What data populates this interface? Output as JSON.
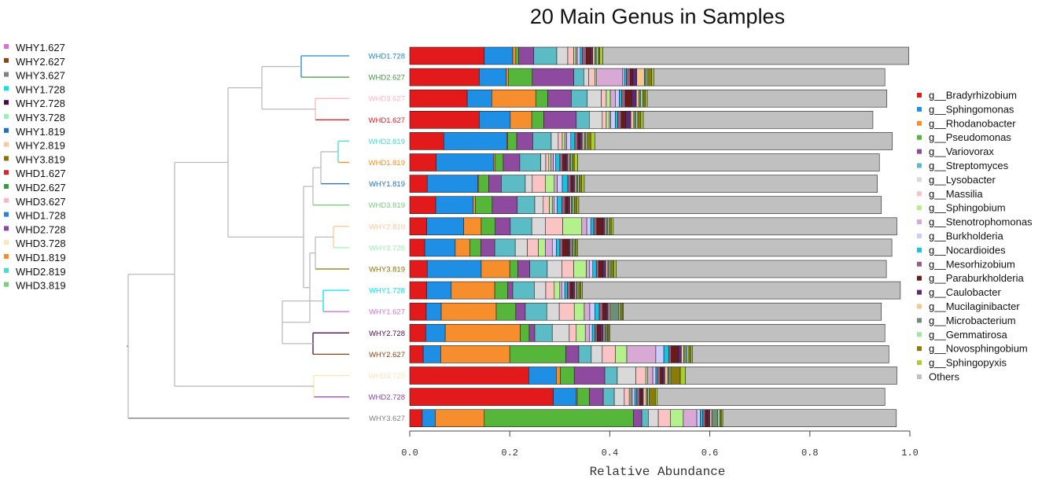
{
  "chart_data": {
    "type": "bar",
    "orientation": "horizontal",
    "stacked": true,
    "title": "20 Main  Genus  in Samples",
    "xlabel": "Relative Abundance",
    "ylabel": "",
    "xlim": [
      0,
      1.0
    ],
    "xticks": [
      "0.0",
      "0.2",
      "0.4",
      "0.6",
      "0.8",
      "1.0"
    ],
    "xtick_values": [
      0,
      0.2,
      0.4,
      0.6,
      0.8,
      1.0
    ],
    "left_legend": {
      "placement": "top-left",
      "items": [
        {
          "label": "WHY1.627",
          "color": "#DA70D6"
        },
        {
          "label": "WHY2.627",
          "color": "#8B4513"
        },
        {
          "label": "WHY3.627",
          "color": "#808080"
        },
        {
          "label": "WHY1.728",
          "color": "#00E5EE"
        },
        {
          "label": "WHY2.728",
          "color": "#4B0A52"
        },
        {
          "label": "WHY3.728",
          "color": "#98F5B0"
        },
        {
          "label": "WHY1.819",
          "color": "#1E6FC8"
        },
        {
          "label": "WHY2.819",
          "color": "#FFC89A"
        },
        {
          "label": "WHY3.819",
          "color": "#8B7300"
        },
        {
          "label": "WHD1.627",
          "color": "#E0202B"
        },
        {
          "label": "WHD2.627",
          "color": "#3C9A3C"
        },
        {
          "label": "WHD3.627",
          "color": "#FFB6C1"
        },
        {
          "label": "WHD1.728",
          "color": "#1E88D6"
        },
        {
          "label": "WHD2.728",
          "color": "#8E44AD"
        },
        {
          "label": "WHD3.728",
          "color": "#FFE4B5"
        },
        {
          "label": "WHD1.819",
          "color": "#FF8C1A"
        },
        {
          "label": "WHD2.819",
          "color": "#40E0D0"
        },
        {
          "label": "WHD3.819",
          "color": "#7CCD7C"
        }
      ]
    },
    "legend": {
      "placement": "right",
      "items": [
        {
          "label": "g__Bradyrhizobium",
          "color": "#E31A1C"
        },
        {
          "label": "g__Sphingomonas",
          "color": "#1F8FE5"
        },
        {
          "label": "g__Rhodanobacter",
          "color": "#F68E2E"
        },
        {
          "label": "g__Pseudomonas",
          "color": "#55B63A"
        },
        {
          "label": "g__Variovorax",
          "color": "#8E4A9E"
        },
        {
          "label": "g__Streptomyces",
          "color": "#5BBCC6"
        },
        {
          "label": "g__Lysobacter",
          "color": "#D9D9D9"
        },
        {
          "label": "g__Massilia",
          "color": "#FBC4C4"
        },
        {
          "label": "g__Sphingobium",
          "color": "#B4F08C"
        },
        {
          "label": "g__Stenotrophomonas",
          "color": "#D9A9D6"
        },
        {
          "label": "g__Burkholderia",
          "color": "#CCCCFF"
        },
        {
          "label": "g__Nocardioides",
          "color": "#15C4E3"
        },
        {
          "label": "g__Mesorhizobium",
          "color": "#9C5C7E"
        },
        {
          "label": "g__Paraburkholderia",
          "color": "#6B1A1A"
        },
        {
          "label": "g__Caulobacter",
          "color": "#5A2A7A"
        },
        {
          "label": "g__Mucilaginibacter",
          "color": "#F5C892"
        },
        {
          "label": "g__Microbacterium",
          "color": "#6E8E7A"
        },
        {
          "label": "g__Gemmatirosa",
          "color": "#9BE8A5"
        },
        {
          "label": "g__Novosphingobium",
          "color": "#8A7B0A"
        },
        {
          "label": "g__Sphingopyxis",
          "color": "#A8D02A"
        },
        {
          "label": "Others",
          "color": "#C0C0C0"
        }
      ]
    },
    "samples": [
      {
        "name": "WHD1.728",
        "color": "#1E88D6"
      },
      {
        "name": "WHD2.627",
        "color": "#3C9A3C"
      },
      {
        "name": "WHD3.627",
        "color": "#FFB6C1"
      },
      {
        "name": "WHD1.627",
        "color": "#E0202B"
      },
      {
        "name": "WHD2.819",
        "color": "#40E0D0"
      },
      {
        "name": "WHD1.819",
        "color": "#FF8C1A"
      },
      {
        "name": "WHY1.819",
        "color": "#1E6FC8"
      },
      {
        "name": "WHD3.819",
        "color": "#7CCD7C"
      },
      {
        "name": "WHY2.819",
        "color": "#FFC89A"
      },
      {
        "name": "WHY3.728",
        "color": "#98F5B0"
      },
      {
        "name": "WHY3.819",
        "color": "#8B7300"
      },
      {
        "name": "WHY1.728",
        "color": "#00E5EE"
      },
      {
        "name": "WHY1.627",
        "color": "#DA70D6"
      },
      {
        "name": "WHY2.728",
        "color": "#4B0A52"
      },
      {
        "name": "WHY2.627",
        "color": "#8B4513"
      },
      {
        "name": "WHD3.728",
        "color": "#FFE4B5"
      },
      {
        "name": "WHD2.728",
        "color": "#8E44AD"
      },
      {
        "name": "WHY3.627",
        "color": "#808080"
      }
    ],
    "series": [
      {
        "name": "g__Bradyrhizobium",
        "values": [
          0.149,
          0.139,
          0.115,
          0.139,
          0.068,
          0.053,
          0.035,
          0.052,
          0.034,
          0.03,
          0.035,
          0.034,
          0.033,
          0.032,
          0.027,
          0.238,
          0.287,
          0.025
        ]
      },
      {
        "name": "g__Sphingomonas",
        "values": [
          0.057,
          0.054,
          0.049,
          0.062,
          0.126,
          0.115,
          0.101,
          0.075,
          0.074,
          0.061,
          0.108,
          0.049,
          0.03,
          0.039,
          0.035,
          0.055,
          0.046,
          0.026
        ]
      },
      {
        "name": "g__Rhodanobacter",
        "values": [
          0.006,
          0.004,
          0.088,
          0.043,
          0.002,
          0.003,
          0.002,
          0.004,
          0.035,
          0.029,
          0.057,
          0.087,
          0.11,
          0.15,
          0.138,
          0.008,
          0.002,
          0.098
        ]
      },
      {
        "name": "g__Pseudomonas",
        "values": [
          0.006,
          0.048,
          0.024,
          0.024,
          0.018,
          0.016,
          0.02,
          0.034,
          0.028,
          0.022,
          0.016,
          0.026,
          0.039,
          0.018,
          0.112,
          0.028,
          0.024,
          0.298
        ]
      },
      {
        "name": "g__Variovorax",
        "values": [
          0.03,
          0.083,
          0.047,
          0.065,
          0.032,
          0.033,
          0.025,
          0.05,
          0.03,
          0.028,
          0.024,
          0.01,
          0.019,
          0.011,
          0.026,
          0.061,
          0.028,
          0.017
        ]
      },
      {
        "name": "g__Streptomyces",
        "values": [
          0.046,
          0.02,
          0.032,
          0.026,
          0.037,
          0.042,
          0.048,
          0.035,
          0.043,
          0.041,
          0.035,
          0.043,
          0.043,
          0.035,
          0.025,
          0.025,
          0.022,
          0.013
        ]
      },
      {
        "name": "g__Lysobacter",
        "values": [
          0.022,
          0.01,
          0.028,
          0.026,
          0.014,
          0.01,
          0.014,
          0.017,
          0.027,
          0.024,
          0.029,
          0.023,
          0.025,
          0.034,
          0.022,
          0.037,
          0.02,
          0.02
        ]
      },
      {
        "name": "g__Massilia",
        "values": [
          0.012,
          0.012,
          0.01,
          0.008,
          0.008,
          0.006,
          0.026,
          0.012,
          0.035,
          0.022,
          0.024,
          0.017,
          0.03,
          0.014,
          0.026,
          0.02,
          0.01,
          0.024
        ]
      },
      {
        "name": "g__Sphingobium",
        "values": [
          0.004,
          0.003,
          0.008,
          0.006,
          0.005,
          0.004,
          0.018,
          0.006,
          0.038,
          0.014,
          0.025,
          0.011,
          0.02,
          0.018,
          0.023,
          0.004,
          0.003,
          0.026
        ]
      },
      {
        "name": "g__Stenotrophomonas",
        "values": [
          0.003,
          0.052,
          0.01,
          0.003,
          0.004,
          0.005,
          0.006,
          0.004,
          0.01,
          0.014,
          0.006,
          0.004,
          0.011,
          0.008,
          0.058,
          0.01,
          0.003,
          0.027
        ]
      },
      {
        "name": "g__Burkholderia",
        "values": [
          0.006,
          0.004,
          0.008,
          0.009,
          0.008,
          0.005,
          0.01,
          0.006,
          0.008,
          0.008,
          0.007,
          0.006,
          0.01,
          0.006,
          0.016,
          0.006,
          0.005,
          0.007
        ]
      },
      {
        "name": "g__Nocardioides",
        "values": [
          0.004,
          0.004,
          0.005,
          0.005,
          0.008,
          0.008,
          0.011,
          0.009,
          0.006,
          0.007,
          0.007,
          0.005,
          0.009,
          0.005,
          0.01,
          0.003,
          0.004,
          0.005
        ]
      },
      {
        "name": "g__Mesorhizobium",
        "values": [
          0.008,
          0.008,
          0.007,
          0.007,
          0.006,
          0.006,
          0.006,
          0.007,
          0.006,
          0.006,
          0.005,
          0.006,
          0.007,
          0.005,
          0.005,
          0.006,
          0.006,
          0.005
        ]
      },
      {
        "name": "g__Paraburkholderia",
        "values": [
          0.009,
          0.005,
          0.013,
          0.009,
          0.004,
          0.006,
          0.004,
          0.005,
          0.012,
          0.011,
          0.008,
          0.005,
          0.007,
          0.006,
          0.014,
          0.005,
          0.004,
          0.005
        ]
      },
      {
        "name": "g__Caulobacter",
        "values": [
          0.004,
          0.008,
          0.009,
          0.01,
          0.005,
          0.004,
          0.004,
          0.004,
          0.004,
          0.004,
          0.006,
          0.004,
          0.004,
          0.006,
          0.006,
          0.004,
          0.003,
          0.004
        ]
      },
      {
        "name": "g__Mucilaginibacter",
        "values": [
          0.004,
          0.015,
          0.005,
          0.006,
          0.004,
          0.003,
          0.003,
          0.003,
          0.003,
          0.003,
          0.004,
          0.003,
          0.003,
          0.003,
          0.005,
          0.006,
          0.006,
          0.004
        ]
      },
      {
        "name": "g__Microbacterium",
        "values": [
          0.003,
          0.004,
          0.004,
          0.004,
          0.003,
          0.003,
          0.003,
          0.003,
          0.003,
          0.003,
          0.003,
          0.002,
          0.018,
          0.003,
          0.006,
          0.003,
          0.003,
          0.012
        ]
      },
      {
        "name": "g__Gemmatirosa",
        "values": [
          0.004,
          0.003,
          0.004,
          0.004,
          0.003,
          0.003,
          0.003,
          0.003,
          0.003,
          0.003,
          0.003,
          0.003,
          0.003,
          0.002,
          0.004,
          0.003,
          0.003,
          0.004
        ]
      },
      {
        "name": "g__Novosphingobium",
        "values": [
          0.003,
          0.008,
          0.005,
          0.006,
          0.007,
          0.004,
          0.005,
          0.005,
          0.004,
          0.003,
          0.006,
          0.004,
          0.004,
          0.003,
          0.004,
          0.019,
          0.012,
          0.003
        ]
      },
      {
        "name": "g__Sphingopyxis",
        "values": [
          0.006,
          0.004,
          0.004,
          0.005,
          0.008,
          0.007,
          0.005,
          0.004,
          0.004,
          0.003,
          0.005,
          0.003,
          0.002,
          0.002,
          0.003,
          0.01,
          0.004,
          0.003
        ]
      },
      {
        "name": "Others",
        "values": [
          0.612,
          0.462,
          0.479,
          0.459,
          0.595,
          0.603,
          0.586,
          0.605,
          0.567,
          0.628,
          0.54,
          0.636,
          0.516,
          0.55,
          0.393,
          0.423,
          0.455,
          0.347
        ]
      }
    ]
  }
}
